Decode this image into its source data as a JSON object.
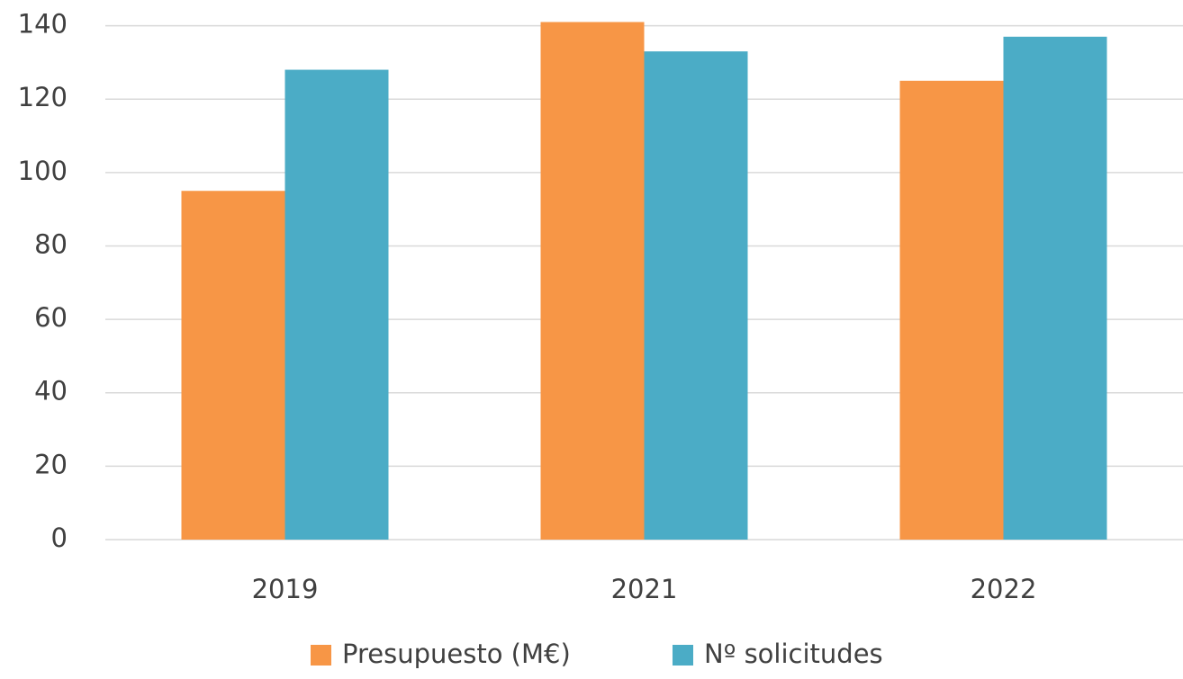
{
  "chart_data": {
    "type": "bar",
    "categories": [
      "2019",
      "2021",
      "2022"
    ],
    "series": [
      {
        "name": "Presupuesto (M€)",
        "color": "#f79646",
        "values": [
          95,
          141,
          125
        ]
      },
      {
        "name": "Nº solicitudes",
        "color": "#4bacc6",
        "values": [
          128,
          133,
          137
        ]
      }
    ],
    "ylim": [
      0,
      147
    ],
    "yticks": [
      0,
      20,
      40,
      60,
      80,
      100,
      120,
      140
    ],
    "grid": true,
    "legend": "bottom"
  }
}
